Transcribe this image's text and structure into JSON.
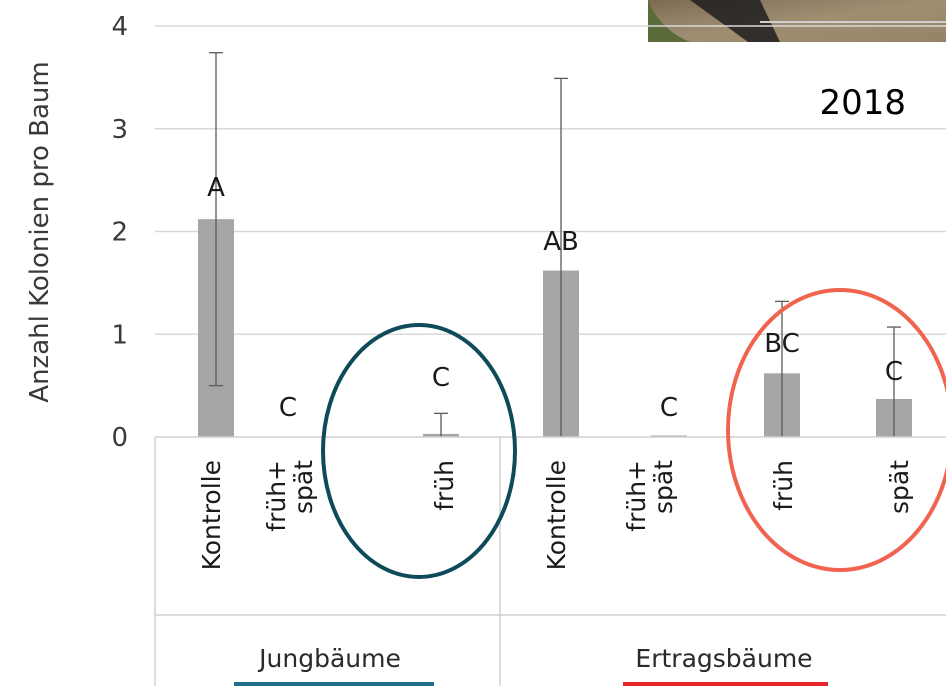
{
  "chart_data": {
    "type": "bar",
    "title": "",
    "year_label": "2018",
    "ylabel": "Anzahl Kolonien pro Baum",
    "ylim": [
      0,
      4
    ],
    "yticks": [
      "0",
      "1",
      "2",
      "3",
      "4"
    ],
    "grid": true,
    "categories": [
      {
        "label": "Kontrolle",
        "group": "Jungbäume"
      },
      {
        "label": "früh+\nspät",
        "group": "Jungbäume"
      },
      {
        "label": "früh",
        "group": "Jungbäume"
      },
      {
        "label": "Kontrolle",
        "group": "Ertragsbäume"
      },
      {
        "label": "früh+\nspät",
        "group": "Ertragsbäume"
      },
      {
        "label": "früh",
        "group": "Ertragsbäume"
      },
      {
        "label": "spät",
        "group": "Ertragsbäume"
      }
    ],
    "values": [
      2.12,
      0.0,
      0.03,
      1.62,
      0.01,
      0.62,
      0.37
    ],
    "error_upper": [
      3.74,
      0.0,
      0.23,
      3.49,
      0.01,
      1.32,
      1.07
    ],
    "error_lower": [
      0.5,
      0.0,
      0.0,
      0.0,
      0.0,
      0.0,
      0.0
    ],
    "significance_letters": [
      "A",
      "C",
      "C",
      "AB",
      "C",
      "BC",
      "C"
    ],
    "groups": [
      {
        "name": "Jungbäume",
        "underline_color": "#1f6e8c"
      },
      {
        "name": "Ertragsbäume",
        "underline_color": "#e8262a"
      }
    ],
    "bar_color": "#a6a6a6",
    "highlights": [
      {
        "group": "Jungbäume",
        "color": "#0f4a5a"
      },
      {
        "group": "Ertragsbäume",
        "color": "#f0644f"
      }
    ]
  }
}
